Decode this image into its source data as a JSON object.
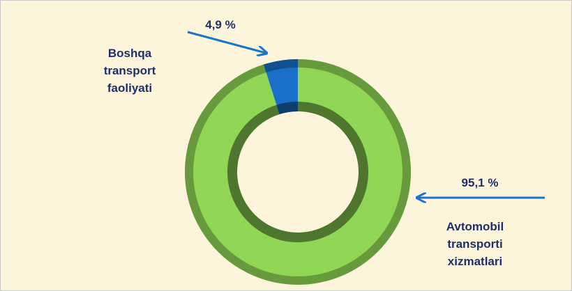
{
  "chart_data": {
    "type": "pie",
    "donut": true,
    "categories": [
      "Avtomobil transporti xizmatlari",
      "Boshqa transport faoliyati"
    ],
    "values": [
      95.1,
      4.9
    ],
    "value_labels": [
      "95,1 %",
      "4,9 %"
    ],
    "colors": [
      "#8ed654",
      "#1a6fc9"
    ]
  }
}
